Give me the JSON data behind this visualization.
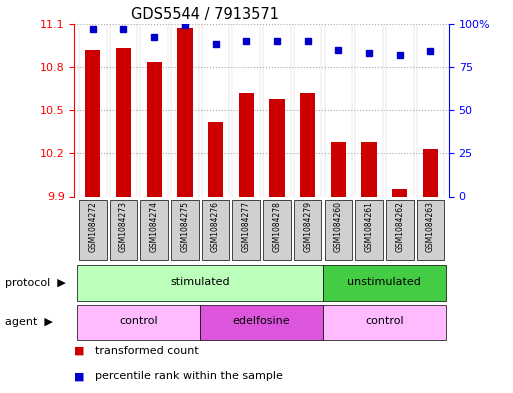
{
  "title": "GDS5544 / 7913571",
  "samples": [
    "GSM1084272",
    "GSM1084273",
    "GSM1084274",
    "GSM1084275",
    "GSM1084276",
    "GSM1084277",
    "GSM1084278",
    "GSM1084279",
    "GSM1084260",
    "GSM1084261",
    "GSM1084262",
    "GSM1084263"
  ],
  "bar_values": [
    10.92,
    10.93,
    10.83,
    11.07,
    10.42,
    10.62,
    10.58,
    10.62,
    10.28,
    10.28,
    9.95,
    10.23
  ],
  "dot_values": [
    97,
    97,
    92,
    99,
    88,
    90,
    90,
    90,
    85,
    83,
    82,
    84
  ],
  "ylim_left": [
    9.9,
    11.1
  ],
  "ylim_right": [
    0,
    100
  ],
  "yticks_left": [
    9.9,
    10.2,
    10.5,
    10.8,
    11.1
  ],
  "yticks_right": [
    0,
    25,
    50,
    75,
    100
  ],
  "right_tick_labels": [
    "0",
    "25",
    "50",
    "75",
    "100%"
  ],
  "bar_color": "#cc0000",
  "dot_color": "#0000cc",
  "protocol_groups": [
    {
      "label": "stimulated",
      "start": 0,
      "end": 7,
      "color": "#bbffbb"
    },
    {
      "label": "unstimulated",
      "start": 8,
      "end": 11,
      "color": "#44cc44"
    }
  ],
  "agent_groups": [
    {
      "label": "control",
      "start": 0,
      "end": 3,
      "color": "#ffbbff"
    },
    {
      "label": "edelfosine",
      "start": 4,
      "end": 7,
      "color": "#dd55dd"
    },
    {
      "label": "control",
      "start": 8,
      "end": 11,
      "color": "#ffbbff"
    }
  ],
  "legend_items": [
    {
      "label": "transformed count",
      "color": "#cc0000"
    },
    {
      "label": "percentile rank within the sample",
      "color": "#0000cc"
    }
  ],
  "protocol_label": "protocol",
  "agent_label": "agent"
}
